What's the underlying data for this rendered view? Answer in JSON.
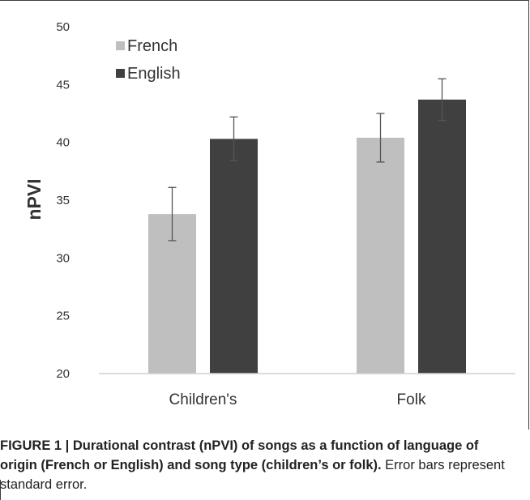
{
  "caption": {
    "bold": "FIGURE 1 | Durational contrast (nPVI) of songs as a function of language of origin (French or English) and song type (children’s or folk).",
    "regular": " Error bars represent standard error."
  },
  "chart_data": {
    "type": "bar",
    "ylabel": "nPVI",
    "xlabel": "",
    "ylim": [
      20,
      50
    ],
    "yticks": [
      20,
      25,
      30,
      35,
      40,
      45,
      50
    ],
    "categories": [
      "Children's",
      "Folk"
    ],
    "legend_position": "top-left",
    "grid": false,
    "series": [
      {
        "name": "French",
        "color": "#bfbfbf",
        "values": [
          33.8,
          40.4
        ],
        "errors": [
          2.3,
          2.1
        ]
      },
      {
        "name": "English",
        "color": "#404040",
        "values": [
          40.3,
          43.7
        ],
        "errors": [
          1.9,
          1.8
        ]
      }
    ]
  }
}
